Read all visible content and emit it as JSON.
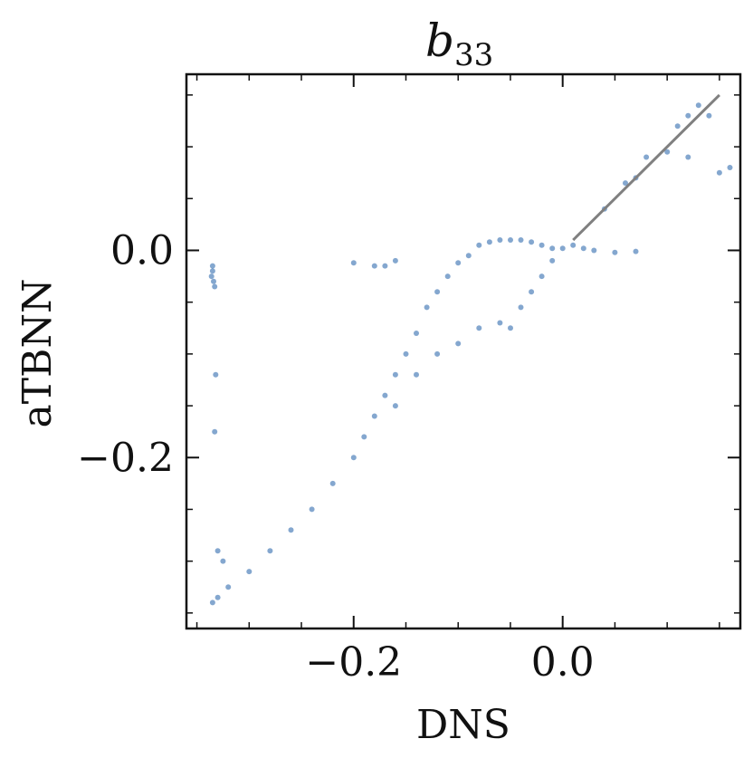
{
  "chart_data": {
    "type": "scatter",
    "title": "b",
    "title_subscript": "33",
    "xlabel": "DNS",
    "ylabel": "aTBNN",
    "xlim": [
      -0.36,
      0.17
    ],
    "ylim": [
      -0.365,
      0.17
    ],
    "x_ticks": [
      {
        "value": -0.2,
        "label": "−0.2"
      },
      {
        "value": 0.0,
        "label": "0.0"
      }
    ],
    "y_ticks": [
      {
        "value": 0.0,
        "label": "0.0"
      },
      {
        "value": -0.2,
        "label": "−0.2"
      }
    ],
    "x_minor_step": 0.05,
    "y_minor_step": 0.05,
    "grid": false,
    "legend": "none",
    "colors": {
      "points": "#1f5fa8",
      "reference_line": "#808080",
      "axes": "#111111"
    },
    "reference_line": {
      "x": [
        0.01,
        0.15
      ],
      "y": [
        0.01,
        0.15
      ]
    },
    "series": [
      {
        "points": [
          [
            -0.335,
            -0.015
          ],
          [
            -0.335,
            -0.02
          ],
          [
            -0.334,
            -0.03
          ],
          [
            -0.336,
            -0.025
          ],
          [
            -0.333,
            -0.035
          ],
          [
            -0.332,
            -0.12
          ],
          [
            -0.333,
            -0.175
          ],
          [
            -0.33,
            -0.29
          ],
          [
            -0.325,
            -0.3
          ],
          [
            -0.335,
            -0.34
          ],
          [
            -0.33,
            -0.335
          ],
          [
            -0.32,
            -0.325
          ],
          [
            -0.3,
            -0.31
          ],
          [
            -0.28,
            -0.29
          ],
          [
            -0.26,
            -0.27
          ],
          [
            -0.24,
            -0.25
          ],
          [
            -0.22,
            -0.225
          ],
          [
            -0.2,
            -0.2
          ],
          [
            -0.19,
            -0.18
          ],
          [
            -0.18,
            -0.16
          ],
          [
            -0.17,
            -0.14
          ],
          [
            -0.16,
            -0.12
          ],
          [
            -0.15,
            -0.1
          ],
          [
            -0.14,
            -0.08
          ],
          [
            -0.13,
            -0.055
          ],
          [
            -0.12,
            -0.04
          ],
          [
            -0.11,
            -0.025
          ],
          [
            -0.1,
            -0.012
          ],
          [
            -0.09,
            -0.005
          ],
          [
            -0.08,
            0.005
          ],
          [
            -0.07,
            0.008
          ],
          [
            -0.06,
            0.01
          ],
          [
            -0.05,
            0.01
          ],
          [
            -0.04,
            0.01
          ],
          [
            -0.03,
            0.008
          ],
          [
            -0.02,
            0.005
          ],
          [
            -0.01,
            0.002
          ],
          [
            0.0,
            0.002
          ],
          [
            0.01,
            0.005
          ],
          [
            0.02,
            0.002
          ],
          [
            0.03,
            0.0
          ],
          [
            0.05,
            -0.002
          ],
          [
            0.07,
            -0.001
          ],
          [
            -0.1,
            -0.09
          ],
          [
            -0.08,
            -0.075
          ],
          [
            -0.06,
            -0.07
          ],
          [
            -0.05,
            -0.075
          ],
          [
            -0.04,
            -0.055
          ],
          [
            -0.03,
            -0.04
          ],
          [
            -0.02,
            -0.025
          ],
          [
            -0.01,
            -0.01
          ],
          [
            -0.12,
            -0.1
          ],
          [
            -0.14,
            -0.12
          ],
          [
            -0.16,
            -0.15
          ],
          [
            -0.2,
            -0.012
          ],
          [
            -0.18,
            -0.015
          ],
          [
            -0.17,
            -0.015
          ],
          [
            -0.16,
            -0.01
          ],
          [
            0.04,
            0.04
          ],
          [
            0.06,
            0.065
          ],
          [
            0.07,
            0.07
          ],
          [
            0.08,
            0.09
          ],
          [
            0.1,
            0.095
          ],
          [
            0.11,
            0.12
          ],
          [
            0.12,
            0.13
          ],
          [
            0.13,
            0.14
          ],
          [
            0.14,
            0.13
          ],
          [
            0.12,
            0.09
          ],
          [
            0.15,
            0.075
          ],
          [
            0.16,
            0.08
          ]
        ]
      }
    ]
  }
}
